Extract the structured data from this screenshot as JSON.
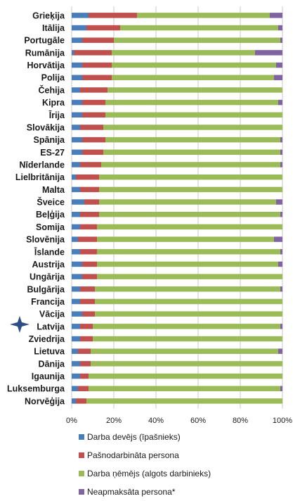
{
  "chart_data": {
    "type": "bar",
    "orientation": "horizontal",
    "stacked": "percent",
    "categories": [
      "Grieķija",
      "Itālija",
      "Portugāle",
      "Rumānija",
      "Horvātija",
      "Polija",
      "Čehija",
      "Kipra",
      "Īrija",
      "Slovākija",
      "Spānija",
      "ES-27",
      "Nīderlande",
      "Lielbritānija",
      "Malta",
      "Šveice",
      "Beļģija",
      "Somija",
      "Slovēnija",
      "Īslande",
      "Austrija",
      "Ungārija",
      "Bulgārija",
      "Francija",
      "Vācija",
      "Latvija",
      "Zviedrija",
      "Lietuva",
      "Dānija",
      "Igaunija",
      "Luksemburga",
      "Norvēģija"
    ],
    "series": [
      {
        "name": "Darba devējs (īpašnieks)",
        "color": "#4a7ebb",
        "values": [
          8,
          7,
          5,
          1,
          5,
          5,
          4,
          5,
          5,
          4,
          5,
          5,
          4,
          2,
          4,
          6,
          4,
          4,
          3,
          4,
          5,
          5,
          4,
          4,
          5,
          4,
          4,
          3,
          4,
          4,
          3,
          2
        ]
      },
      {
        "name": "Pašnodarbināta persona",
        "color": "#c0504d",
        "values": [
          23,
          16,
          15,
          18,
          14,
          14,
          13,
          11,
          11,
          11,
          11,
          10,
          10,
          11,
          9,
          7,
          9,
          8,
          9,
          8,
          7,
          7,
          7,
          7,
          6,
          6,
          6,
          6,
          5,
          4,
          5,
          5
        ]
      },
      {
        "name": "Darba ņēmējs (algots darbinieks)",
        "color": "#9bbb59",
        "values": [
          63,
          75,
          79,
          68,
          78,
          77,
          83,
          82,
          84,
          85,
          83,
          84,
          85,
          87,
          87,
          84,
          86,
          88,
          84,
          87,
          86,
          88,
          88,
          89,
          89,
          89,
          90,
          89,
          91,
          92,
          91,
          93
        ]
      },
      {
        "name": "Neapmaksāta persona*",
        "color": "#8064a2",
        "values": [
          6,
          2,
          1,
          13,
          3,
          4,
          0,
          2,
          0,
          0,
          1,
          1,
          1,
          0,
          0,
          3,
          1,
          0,
          4,
          1,
          2,
          0,
          1,
          0,
          0,
          1,
          0,
          2,
          0,
          0,
          1,
          0
        ]
      }
    ],
    "x_ticks": [
      "0%",
      "20%",
      "40%",
      "60%",
      "80%",
      "100%"
    ],
    "xlim": [
      0,
      100
    ],
    "grid": true,
    "legend_position": "bottom",
    "highlight_category": "Latvija",
    "highlight_marker": "four-point-star"
  }
}
